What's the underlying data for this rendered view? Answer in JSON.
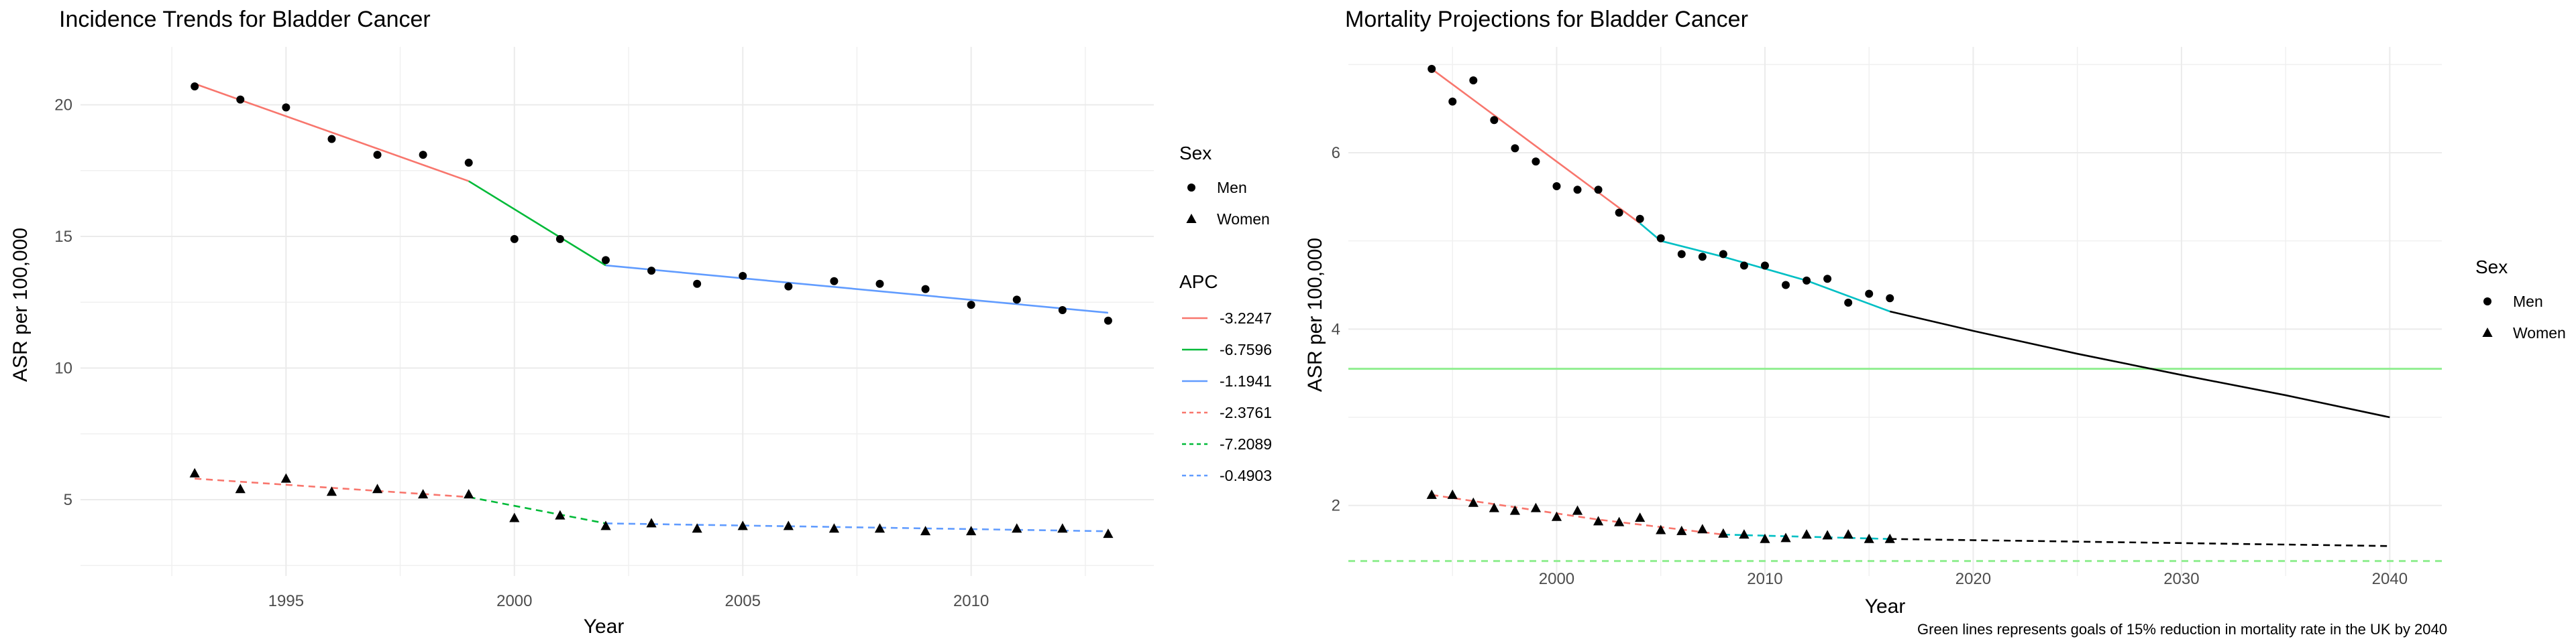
{
  "left_panel": {
    "title": "Incidence Trends for Bladder Cancer",
    "xlabel": "Year",
    "ylabel": "ASR per 100,000",
    "legend_sex_title": "Sex",
    "legend_apc_title": "APC"
  },
  "right_panel": {
    "title": "Mortality Projections for Bladder Cancer",
    "xlabel": "Year",
    "ylabel": "ASR per 100,000",
    "legend_sex_title": "Sex",
    "caption": "Green lines represents goals of 15% reduction in mortality rate in the UK by 2040"
  },
  "chart_data": [
    {
      "type": "scatter",
      "title": "Incidence Trends for Bladder Cancer",
      "xlabel": "Year",
      "ylabel": "ASR per 100,000",
      "xlim": [
        1990.5,
        2014
      ],
      "ylim": [
        2.1,
        22.2
      ],
      "x_ticks": [
        1995,
        2000,
        2005,
        2010
      ],
      "y_ticks": [
        5,
        10,
        15,
        20
      ],
      "grid": true,
      "legend_position": "right",
      "series": [
        {
          "name": "Men",
          "shape": "circle",
          "x": [
            1993,
            1994,
            1995,
            1996,
            1997,
            1998,
            1999,
            2000,
            2001,
            2002,
            2003,
            2004,
            2005,
            2006,
            2007,
            2008,
            2009,
            2010,
            2011,
            2012,
            2013
          ],
          "y": [
            20.7,
            20.2,
            19.9,
            18.7,
            18.1,
            18.1,
            17.8,
            14.9,
            14.9,
            14.1,
            13.7,
            13.2,
            13.5,
            13.1,
            13.3,
            13.2,
            13.0,
            12.4,
            12.6,
            12.2,
            11.8
          ]
        },
        {
          "name": "Women",
          "shape": "triangle",
          "x": [
            1993,
            1994,
            1995,
            1996,
            1997,
            1998,
            1999,
            2000,
            2001,
            2002,
            2003,
            2004,
            2005,
            2006,
            2007,
            2008,
            2009,
            2010,
            2011,
            2012,
            2013
          ],
          "y": [
            6.0,
            5.4,
            5.8,
            5.3,
            5.4,
            5.2,
            5.2,
            4.3,
            4.4,
            4.0,
            4.1,
            3.9,
            4.0,
            4.0,
            3.9,
            3.9,
            3.8,
            3.8,
            3.9,
            3.9,
            3.7
          ]
        }
      ],
      "fits": [
        {
          "apc": "-3.2247",
          "color": "#f8766d",
          "dash": false,
          "x": [
            1993,
            1999
          ],
          "y": [
            20.8,
            17.1
          ]
        },
        {
          "apc": "-6.7596",
          "color": "#00ba38",
          "dash": false,
          "x": [
            1999,
            2002
          ],
          "y": [
            17.1,
            13.9
          ]
        },
        {
          "apc": "-1.1941",
          "color": "#619cff",
          "dash": false,
          "x": [
            2002,
            2013
          ],
          "y": [
            13.9,
            12.1
          ]
        },
        {
          "apc": "-2.3761",
          "color": "#f8766d",
          "dash": true,
          "x": [
            1993,
            1999
          ],
          "y": [
            5.8,
            5.1
          ]
        },
        {
          "apc": "-7.2089",
          "color": "#00ba38",
          "dash": true,
          "x": [
            1999,
            2002
          ],
          "y": [
            5.1,
            4.1
          ]
        },
        {
          "apc": "-0.4903",
          "color": "#619cff",
          "dash": true,
          "x": [
            2002,
            2013
          ],
          "y": [
            4.1,
            3.8
          ]
        }
      ]
    },
    {
      "type": "scatter",
      "title": "Mortality Projections for Bladder Cancer",
      "xlabel": "Year",
      "ylabel": "ASR per 100,000",
      "xlim": [
        1990,
        2042.5
      ],
      "ylim": [
        1.2,
        7.2
      ],
      "x_ticks": [
        2000,
        2010,
        2020,
        2030,
        2040
      ],
      "y_ticks": [
        2,
        4,
        6
      ],
      "grid": true,
      "legend_position": "right",
      "series": [
        {
          "name": "Men",
          "shape": "circle",
          "x": [
            1994,
            1995,
            1996,
            1997,
            1998,
            1999,
            2000,
            2001,
            2002,
            2003,
            2004,
            2005,
            2006,
            2007,
            2008,
            2009,
            2010,
            2011,
            2012,
            2013,
            2014,
            2015,
            2016
          ],
          "y": [
            6.95,
            6.58,
            6.82,
            6.37,
            6.05,
            5.9,
            5.62,
            5.58,
            5.58,
            5.32,
            5.25,
            5.03,
            4.85,
            4.82,
            4.85,
            4.72,
            4.72,
            4.5,
            4.55,
            4.57,
            4.3,
            4.4,
            4.35
          ]
        },
        {
          "name": "Women",
          "shape": "triangle",
          "x": [
            1994,
            1995,
            1996,
            1997,
            1998,
            1999,
            2000,
            2001,
            2002,
            2003,
            2004,
            2005,
            2006,
            2007,
            2008,
            2009,
            2010,
            2011,
            2012,
            2013,
            2014,
            2015,
            2016
          ],
          "y": [
            2.12,
            2.12,
            2.03,
            1.97,
            1.94,
            1.97,
            1.87,
            1.94,
            1.82,
            1.81,
            1.86,
            1.72,
            1.71,
            1.73,
            1.68,
            1.67,
            1.62,
            1.63,
            1.67,
            1.66,
            1.67,
            1.62,
            1.62
          ]
        }
      ],
      "fits": [
        {
          "color": "#f8766d",
          "dash": false,
          "x": [
            1994,
            1996,
            1998,
            2000,
            2002,
            2004
          ],
          "y": [
            6.95,
            6.6,
            6.25,
            5.9,
            5.55,
            5.2
          ]
        },
        {
          "color": "#00bfc4",
          "dash": false,
          "x": [
            2004,
            2005,
            2008,
            2012,
            2016
          ],
          "y": [
            5.2,
            5.0,
            4.82,
            4.55,
            4.2
          ]
        },
        {
          "color": "#000000",
          "dash": false,
          "x": [
            2016,
            2020,
            2025,
            2030,
            2035,
            2040
          ],
          "y": [
            4.2,
            3.98,
            3.72,
            3.48,
            3.25,
            3.0
          ]
        },
        {
          "color": "#f8766d",
          "dash": true,
          "x": [
            1994,
            2002,
            2008
          ],
          "y": [
            2.12,
            1.84,
            1.67
          ]
        },
        {
          "color": "#00bfc4",
          "dash": true,
          "x": [
            2008,
            2016
          ],
          "y": [
            1.67,
            1.62
          ]
        },
        {
          "color": "#000000",
          "dash": true,
          "x": [
            2016,
            2040
          ],
          "y": [
            1.62,
            1.54
          ]
        }
      ],
      "goal_lines": [
        {
          "y": 3.55,
          "color": "#90ee90",
          "dash": false
        },
        {
          "y": 1.37,
          "color": "#90ee90",
          "dash": true
        }
      ]
    }
  ]
}
